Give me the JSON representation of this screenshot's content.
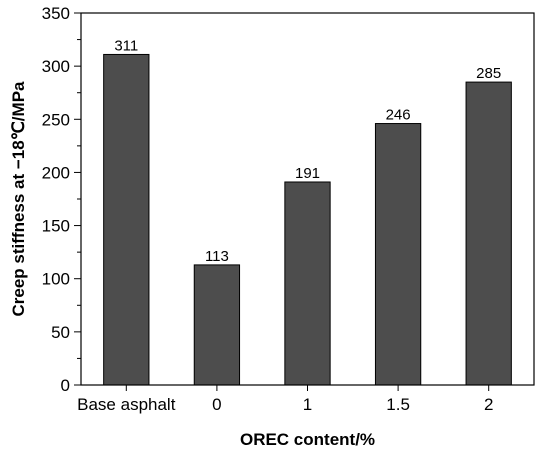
{
  "chart_data": {
    "type": "bar",
    "title": "",
    "xlabel": "OREC content/%",
    "ylabel": "Creep stiffness at −18℃/MPa",
    "categories": [
      "Base asphalt",
      "0",
      "1",
      "1.5",
      "2"
    ],
    "values": [
      311,
      113,
      191,
      246,
      285
    ],
    "data_labels": [
      "311",
      "113",
      "191",
      "246",
      "285"
    ],
    "ylim": [
      0,
      350
    ],
    "yticks": [
      0,
      50,
      100,
      150,
      200,
      250,
      300,
      350
    ],
    "ytick_labels": [
      "0",
      "50",
      "100",
      "150",
      "200",
      "250",
      "300",
      "350"
    ],
    "grid": false,
    "legend": "none",
    "bar_color": "#4d4d4d"
  }
}
